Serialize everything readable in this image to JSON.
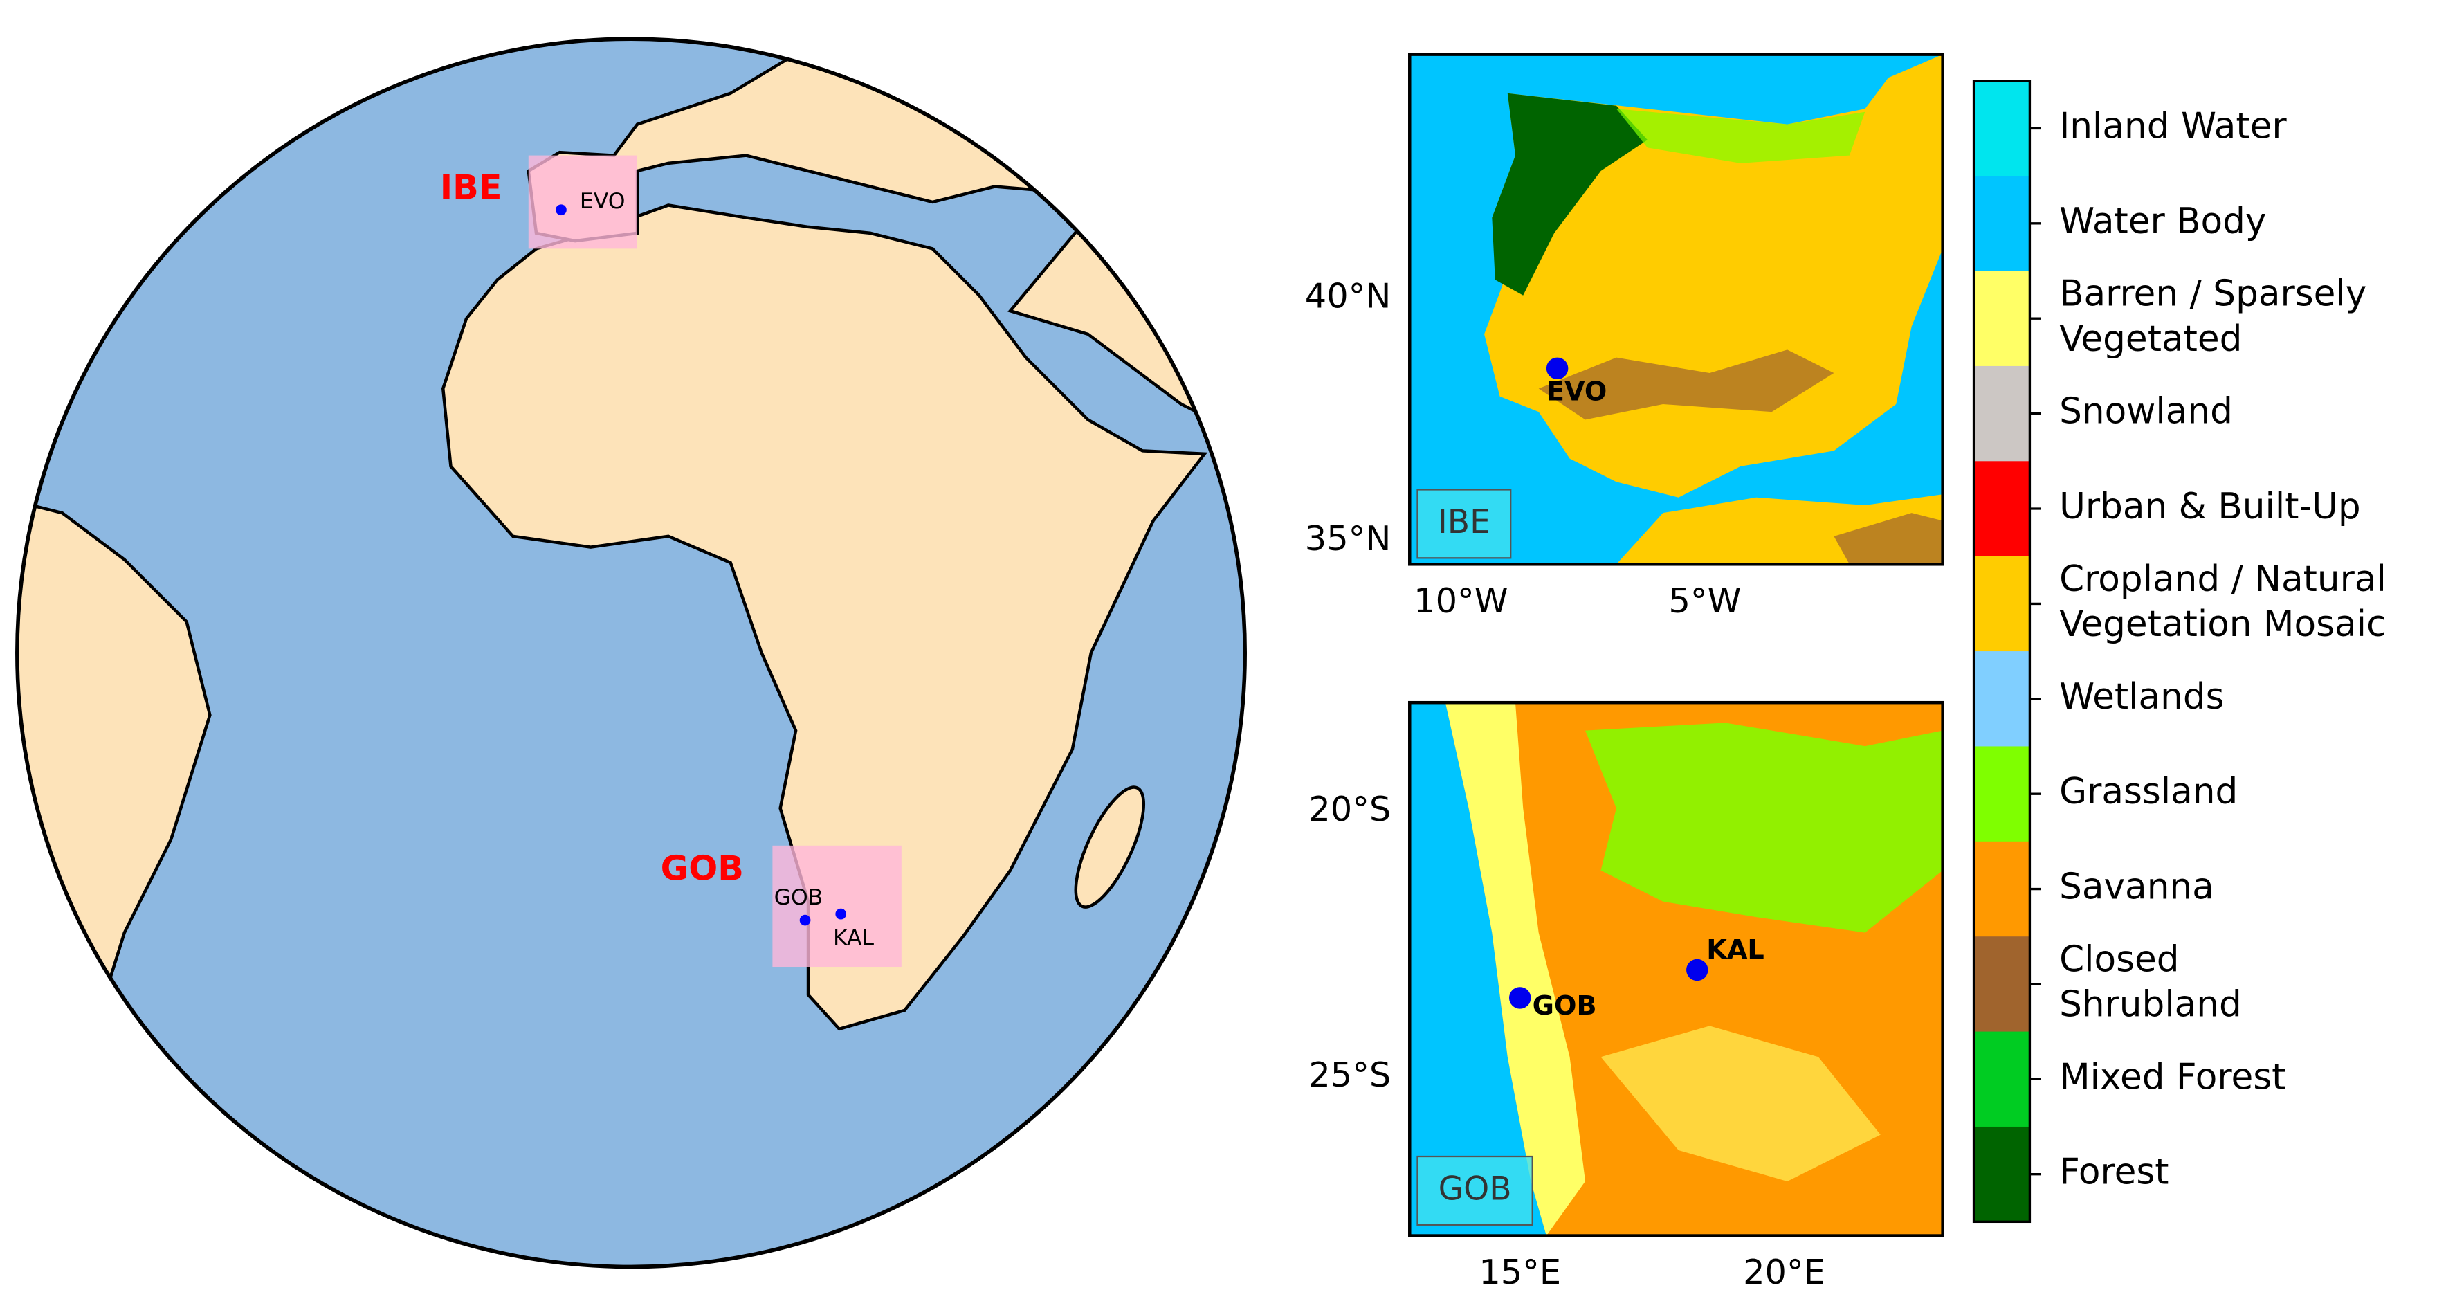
{
  "globe": {
    "regions": [
      {
        "label": "IBE",
        "stations": [
          "EVO"
        ]
      },
      {
        "label": "GOB",
        "stations": [
          "GOB",
          "KAL"
        ]
      }
    ]
  },
  "insets": [
    {
      "tag": "IBE",
      "yticks": [
        "40°N",
        "35°N"
      ],
      "xticks": [
        "10°W",
        "5°W"
      ],
      "stations": [
        "EVO"
      ]
    },
    {
      "tag": "GOB",
      "yticks": [
        "20°S",
        "25°S"
      ],
      "xticks": [
        "15°E",
        "20°E"
      ],
      "stations": [
        "GOB",
        "KAL"
      ]
    }
  ],
  "legend": {
    "classes": [
      {
        "lines": [
          "Inland Water"
        ],
        "color": "#00e5ee"
      },
      {
        "lines": [
          "Water Body"
        ],
        "color": "#00c5ff"
      },
      {
        "lines": [
          "Barren / Sparsely",
          "Vegetated"
        ],
        "color": "#ffff66"
      },
      {
        "lines": [
          "Snowland"
        ],
        "color": "#ccc7c4"
      },
      {
        "lines": [
          "Urban & Built-Up"
        ],
        "color": "#ff0000"
      },
      {
        "lines": [
          "Cropland / Natural",
          "Vegetation Mosaic"
        ],
        "color": "#ffcc00"
      },
      {
        "lines": [
          "Wetlands"
        ],
        "color": "#80cfff"
      },
      {
        "lines": [
          "Grassland"
        ],
        "color": "#7fff00"
      },
      {
        "lines": [
          "Savanna"
        ],
        "color": "#ff9900"
      },
      {
        "lines": [
          "Closed",
          "Shrubland"
        ],
        "color": "#a0642d"
      },
      {
        "lines": [
          "Mixed Forest"
        ],
        "color": "#00cc22"
      },
      {
        "lines": [
          "Forest"
        ],
        "color": "#006400"
      }
    ]
  }
}
